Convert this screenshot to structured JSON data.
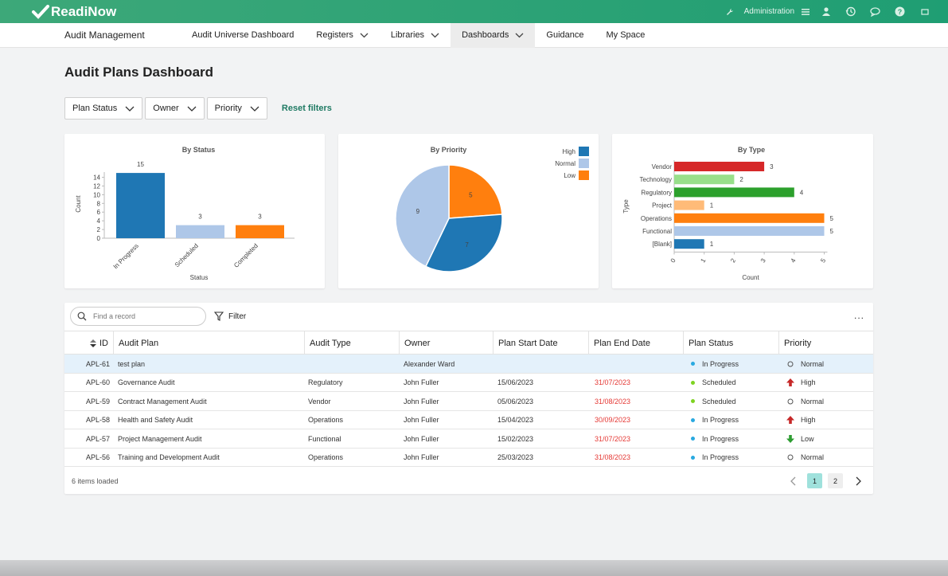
{
  "brand": {
    "logo_text": "ReadiNow",
    "color": "#2aa377"
  },
  "topbar": {
    "admin_label": "Administration",
    "icons": [
      "wrench-icon",
      "menu-icon",
      "user-icon",
      "history-icon",
      "chat-icon",
      "help-icon",
      "expand-icon"
    ]
  },
  "nav": {
    "app_title": "Audit Management",
    "items": [
      {
        "label": "Audit Universe Dashboard",
        "dropdown": false
      },
      {
        "label": "Registers",
        "dropdown": true
      },
      {
        "label": "Libraries",
        "dropdown": true
      },
      {
        "label": "Dashboards",
        "dropdown": true,
        "active": true
      },
      {
        "label": "Guidance",
        "dropdown": false
      },
      {
        "label": "My Space",
        "dropdown": false
      }
    ]
  },
  "page": {
    "title": "Audit Plans Dashboard"
  },
  "filters": {
    "plan_status": "Plan Status",
    "owner": "Owner",
    "priority": "Priority",
    "reset": "Reset filters"
  },
  "chart_data": [
    {
      "type": "bar",
      "title": "By Status",
      "xlabel": "Status",
      "ylabel": "Count",
      "categories": [
        "In Progress",
        "Scheduled",
        "Completed"
      ],
      "values": [
        15,
        3,
        3
      ],
      "colors": [
        "#1f77b4",
        "#aec7e8",
        "#ff7f0e"
      ],
      "ylim": [
        0,
        15
      ],
      "yticks": [
        0,
        2,
        4,
        6,
        8,
        10,
        12,
        14
      ]
    },
    {
      "type": "pie",
      "title": "By Priority",
      "categories": [
        "High",
        "Normal",
        "Low"
      ],
      "values": [
        7,
        9,
        5
      ],
      "colors": [
        "#1f77b4",
        "#aec7e8",
        "#ff7f0e"
      ],
      "legend": "top-right"
    },
    {
      "type": "bar",
      "orientation": "horizontal",
      "title": "By Type",
      "xlabel": "Count",
      "ylabel": "Type",
      "categories": [
        "Vendor",
        "Technology",
        "Regulatory",
        "Project",
        "Operations",
        "Functional",
        "[Blank]"
      ],
      "values": [
        3,
        2,
        4,
        1,
        5,
        5,
        1
      ],
      "colors": [
        "#d62728",
        "#98df8a",
        "#2ca02c",
        "#ffbb78",
        "#ff7f0e",
        "#aec7e8",
        "#1f77b4"
      ],
      "xlim": [
        0,
        5
      ],
      "xticks": [
        0,
        1,
        2,
        3,
        4,
        5
      ]
    }
  ],
  "grid": {
    "search_placeholder": "Find a record",
    "filter_label": "Filter",
    "more_label": "...",
    "columns": [
      "ID",
      "Audit Plan",
      "Audit Type",
      "Owner",
      "Plan Start Date",
      "Plan End Date",
      "Plan Status",
      "Priority"
    ],
    "rows": [
      {
        "id": "APL-61",
        "plan": "test plan",
        "type": "",
        "owner": "Alexander Ward",
        "start": "",
        "end": "",
        "status": "In Progress",
        "priority": "Normal",
        "selected": true
      },
      {
        "id": "APL-60",
        "plan": "Governance Audit",
        "type": "Regulatory",
        "owner": "John Fuller",
        "start": "15/06/2023",
        "end": "31/07/2023",
        "status": "Scheduled",
        "priority": "High"
      },
      {
        "id": "APL-59",
        "plan": "Contract Management Audit",
        "type": "Vendor",
        "owner": "John Fuller",
        "start": "05/06/2023",
        "end": "31/08/2023",
        "status": "Scheduled",
        "priority": "Normal"
      },
      {
        "id": "APL-58",
        "plan": "Health and Safety Audit",
        "type": "Operations",
        "owner": "John Fuller",
        "start": "15/04/2023",
        "end": "30/09/2023",
        "status": "In Progress",
        "priority": "High"
      },
      {
        "id": "APL-57",
        "plan": "Project Management Audit",
        "type": "Functional",
        "owner": "John Fuller",
        "start": "15/02/2023",
        "end": "31/07/2023",
        "status": "In Progress",
        "priority": "Low"
      },
      {
        "id": "APL-56",
        "plan": "Training and Development Audit",
        "type": "Operations",
        "owner": "John Fuller",
        "start": "25/03/2023",
        "end": "31/08/2023",
        "status": "In Progress",
        "priority": "Normal"
      }
    ],
    "footer": "6 items loaded",
    "pages": [
      "1",
      "2"
    ],
    "current_page": "1",
    "status_colors": {
      "In Progress": "#29a9e0",
      "Scheduled": "#7ed321"
    },
    "end_date_color": "#e53935"
  }
}
